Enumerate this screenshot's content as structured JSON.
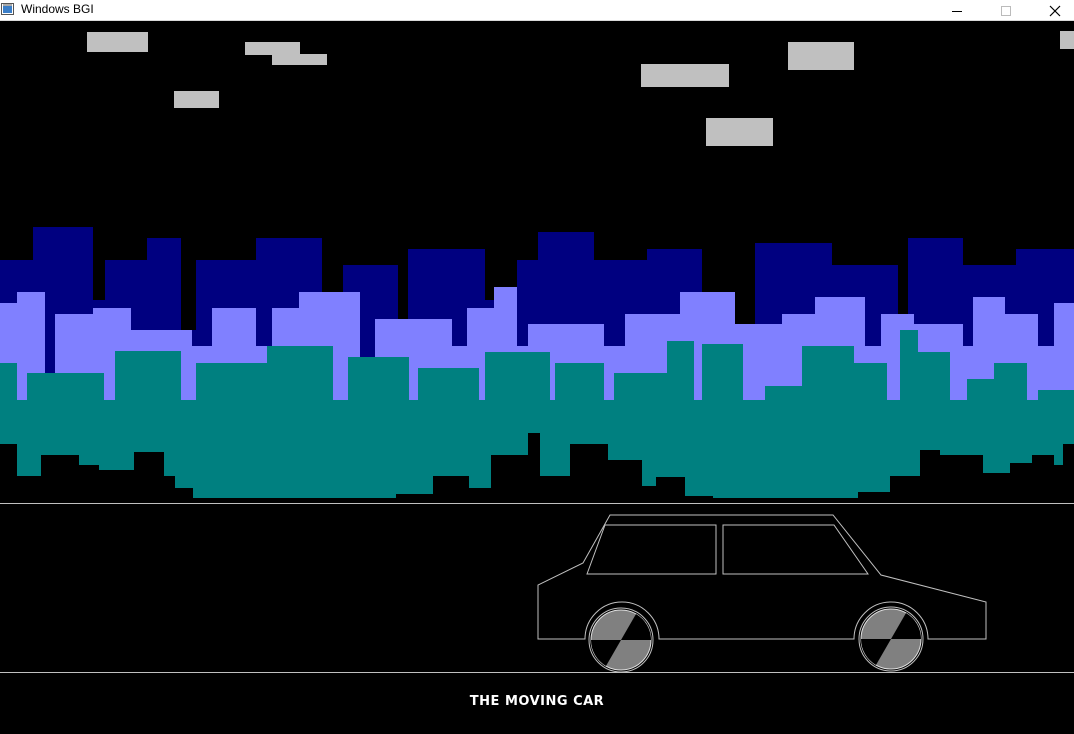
{
  "window": {
    "title": "Windows BGI",
    "controls": {
      "minimize": "minimize",
      "maximize": "maximize",
      "close": "close"
    }
  },
  "scene": {
    "caption": "THE MOVING CAR",
    "colors": {
      "background": "#000000",
      "clouds": "#c0c0c0",
      "buildings_back": "#000080",
      "buildings_middle": "#8080ff",
      "buildings_front": "#008080",
      "road_lines": "#c0c0c0",
      "car_outline": "#c0c0c0",
      "wheels": "#808080"
    }
  }
}
